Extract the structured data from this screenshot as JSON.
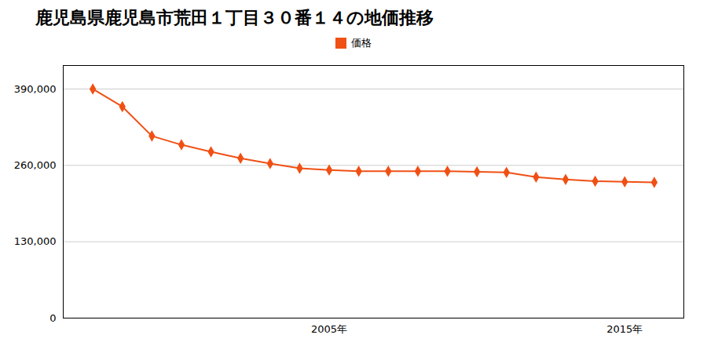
{
  "chart_data": {
    "type": "line",
    "title": "鹿児島県鹿児島市荒田１丁目３０番１４の地価推移",
    "x": [
      1997,
      1998,
      1999,
      2000,
      2001,
      2002,
      2003,
      2004,
      2005,
      2006,
      2007,
      2008,
      2009,
      2010,
      2011,
      2012,
      2013,
      2014,
      2015,
      2016
    ],
    "series": [
      {
        "name": "価格",
        "color": "#f05014",
        "marker": "diamond",
        "values": [
          390000,
          360000,
          310000,
          295000,
          283000,
          272000,
          263000,
          255000,
          252000,
          250000,
          250000,
          250000,
          250000,
          249000,
          248000,
          240000,
          236000,
          233000,
          232000,
          231000
        ]
      }
    ],
    "xlim": [
      1996,
      2017
    ],
    "xticks": [
      {
        "value": 2005,
        "label": "2005年"
      },
      {
        "value": 2015,
        "label": "2015年"
      }
    ],
    "ylim": [
      0,
      430000
    ],
    "yticks": [
      0,
      {
        "value": 130000,
        "label": "130,000"
      },
      {
        "value": 260000,
        "label": "260,000"
      },
      {
        "value": 390000,
        "label": "390,000"
      }
    ],
    "grid": "y",
    "legend": "top"
  }
}
